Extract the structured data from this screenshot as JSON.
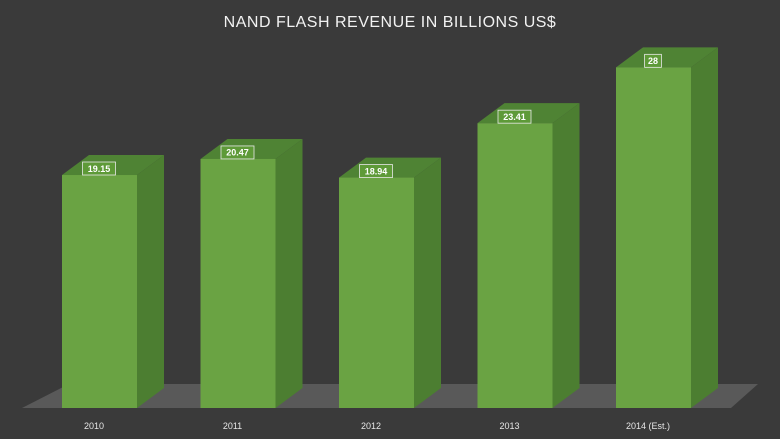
{
  "chart_data": {
    "type": "bar",
    "title": "NAND FLASH REVENUE IN BILLIONS US$",
    "categories": [
      "2010",
      "2011",
      "2012",
      "2013",
      "2014 (Est.)"
    ],
    "series": [
      {
        "values": [
          19.15,
          20.47,
          18.94,
          23.41,
          28
        ]
      }
    ],
    "data_labels": [
      "19.15",
      "20.47",
      "18.94",
      "23.41",
      "28"
    ],
    "xlabel": "",
    "ylabel": "",
    "ylim": [
      0,
      36
    ],
    "grid": false,
    "legend": "none",
    "style": "3d-column"
  },
  "colors": {
    "background": "#3a3a3a",
    "floor": "#595959",
    "bar_front": "#6aa343",
    "bar_side": "#4c7e31",
    "bar_top": "#4f8334",
    "label_box": "#5e9a38",
    "text": "#f2f2f2"
  }
}
